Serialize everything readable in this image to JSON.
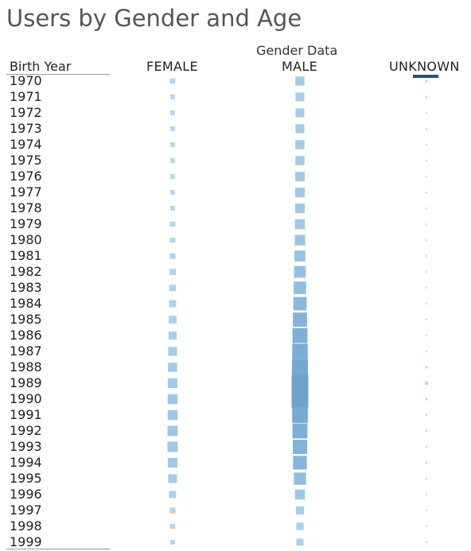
{
  "title": "Users by Gender and Age",
  "column_group_label": "Gender Data",
  "row_header": "Birth Year",
  "columns": [
    "FEMALE",
    "MALE",
    "UNKNOWN"
  ],
  "colors": {
    "mark_low": "#bcdcf0",
    "mark_high": "#6fa4cf",
    "highlight": "#2c4f7c"
  },
  "chart_data": {
    "type": "heatmap",
    "title": "Users by Gender and Age",
    "ylabel": "Birth Year",
    "column_group": "Gender Data",
    "categories": [
      "1970",
      "1971",
      "1972",
      "1973",
      "1974",
      "1975",
      "1976",
      "1977",
      "1978",
      "1979",
      "1980",
      "1981",
      "1982",
      "1983",
      "1984",
      "1985",
      "1986",
      "1987",
      "1988",
      "1989",
      "1990",
      "1991",
      "1992",
      "1993",
      "1994",
      "1995",
      "1996",
      "1997",
      "1998",
      "1999"
    ],
    "series": [
      {
        "name": "FEMALE",
        "values": [
          5,
          4,
          4,
          4,
          4,
          4,
          4,
          4,
          4,
          5,
          5,
          6,
          7,
          8,
          9,
          11,
          12,
          14,
          15,
          17,
          18,
          18,
          19,
          19,
          17,
          14,
          9,
          6,
          5,
          4
        ]
      },
      {
        "name": "MALE",
        "values": [
          15,
          14,
          14,
          14,
          15,
          15,
          16,
          17,
          17,
          18,
          20,
          22,
          25,
          28,
          32,
          36,
          40,
          43,
          46,
          50,
          50,
          44,
          40,
          37,
          34,
          27,
          18,
          12,
          10,
          9
        ]
      },
      {
        "name": "UNKNOWN",
        "values": [
          1,
          0.5,
          0.5,
          0.5,
          0.5,
          0.5,
          0.5,
          0.5,
          0.5,
          0.5,
          0.5,
          0.5,
          0.5,
          0.5,
          0.5,
          0.5,
          0.5,
          0.5,
          1,
          2,
          1,
          0.5,
          0.5,
          0.5,
          0.5,
          0.5,
          0.5,
          0.5,
          0.5,
          0.5
        ]
      }
    ],
    "encoding": "square size and color proportional to user count",
    "grid": false,
    "legend": "none"
  }
}
